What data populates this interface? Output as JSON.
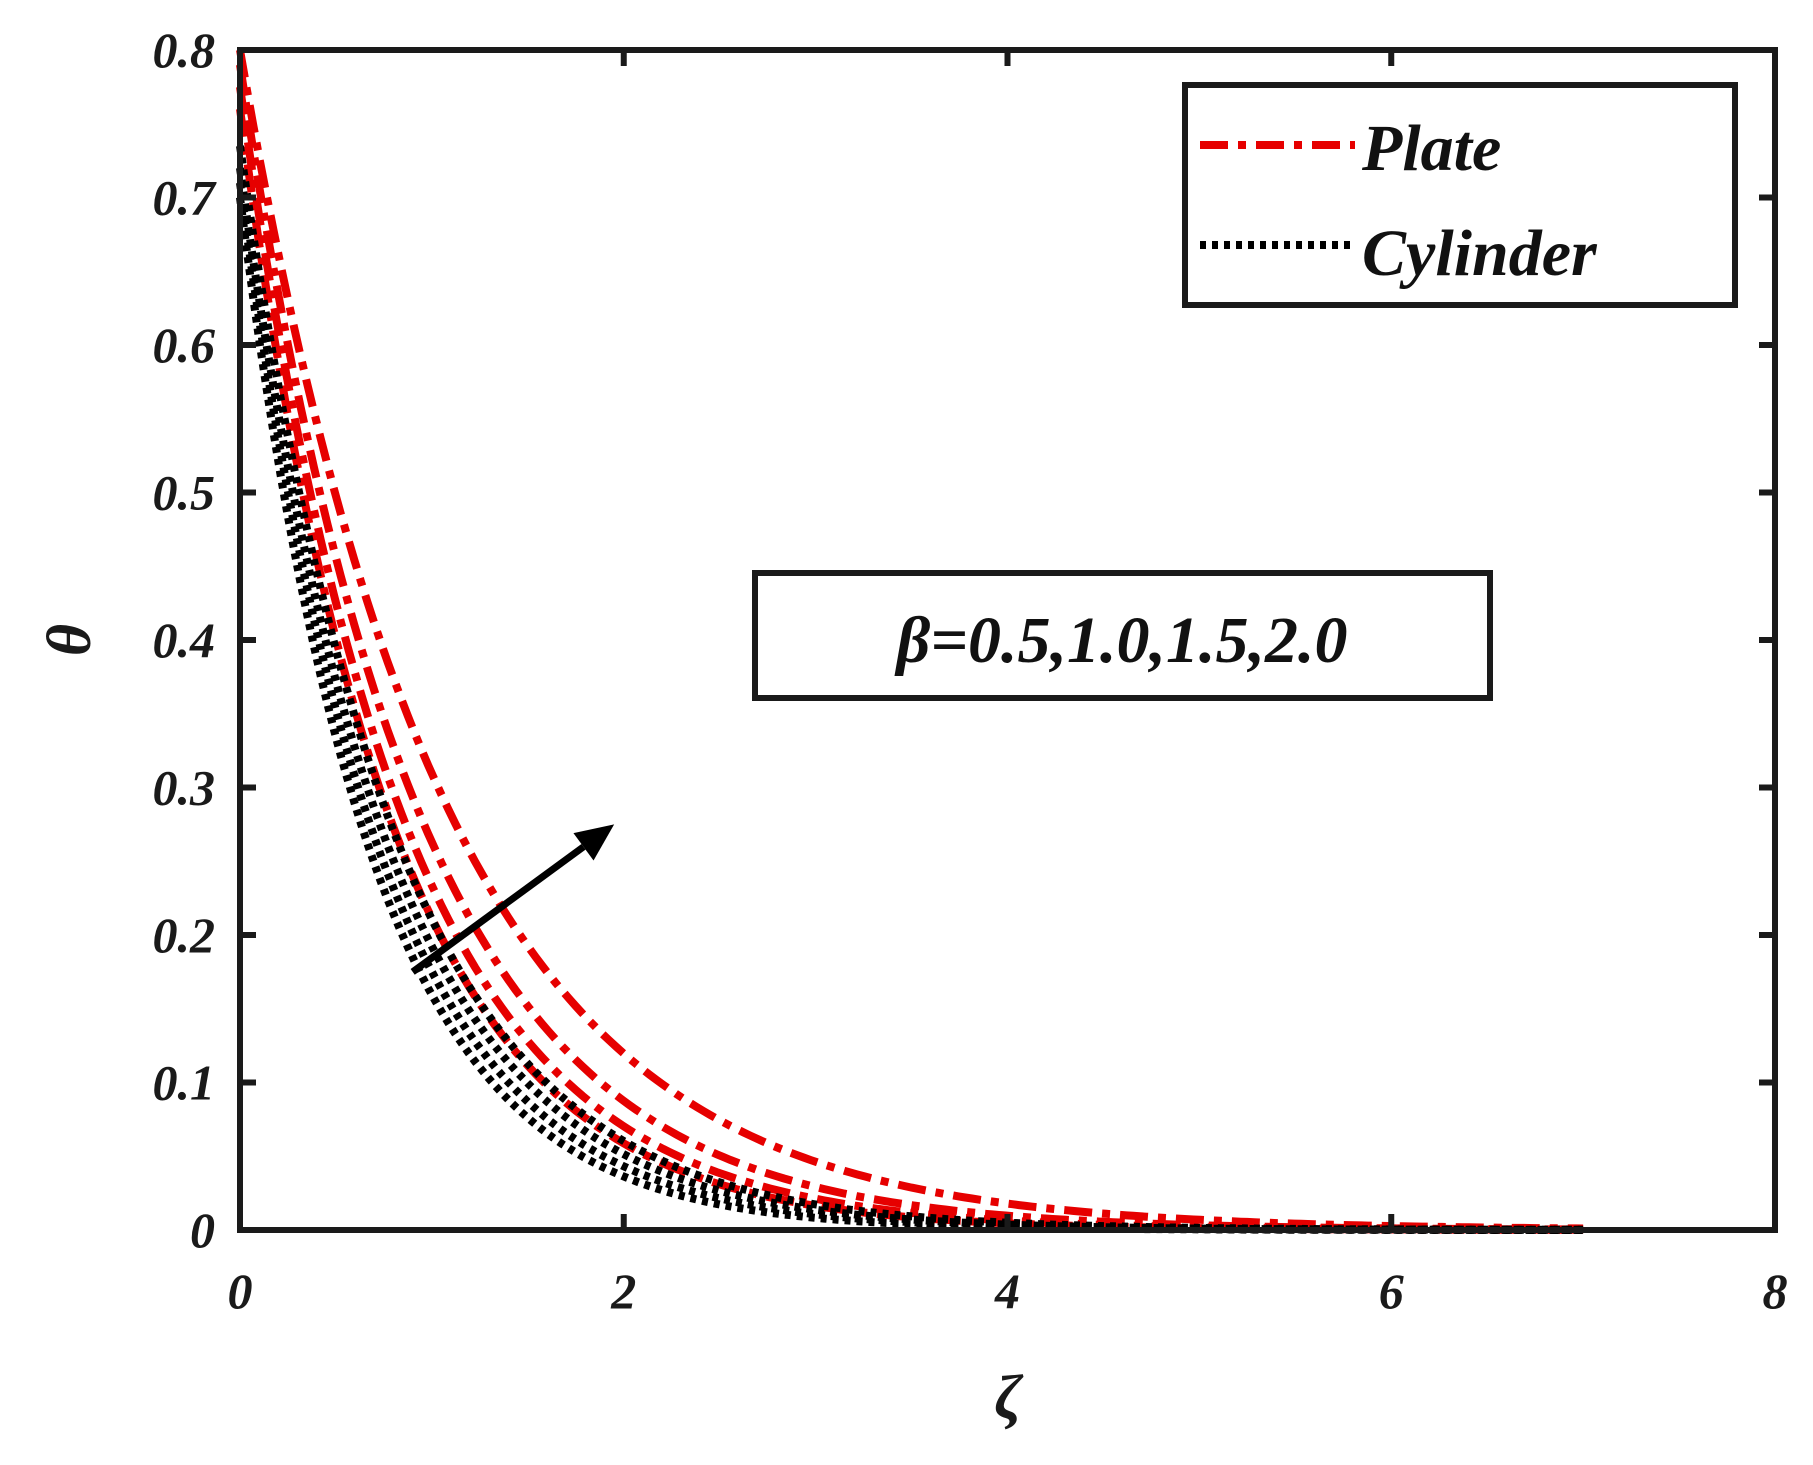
{
  "chart_data": {
    "type": "line",
    "xlabel": "ζ",
    "ylabel": "θ",
    "xlim": [
      0,
      8
    ],
    "ylim": [
      0,
      0.8
    ],
    "xticks": [
      0,
      2,
      4,
      6,
      8
    ],
    "yticks": [
      0,
      0.1,
      0.2,
      0.3,
      0.4,
      0.5,
      0.6,
      0.7,
      0.8
    ],
    "xtick_labels": [
      "0",
      "2",
      "4",
      "6",
      "8"
    ],
    "ytick_labels": [
      "0",
      "0.1",
      "0.2",
      "0.3",
      "0.4",
      "0.5",
      "0.6",
      "0.7",
      "0.8"
    ],
    "grid": false,
    "legend": {
      "position": "top-right",
      "entries": [
        {
          "label": "Plate",
          "color": "#e60000",
          "style": "dashdot"
        },
        {
          "label": "Cylinder",
          "color": "#000000",
          "style": "dotted"
        }
      ]
    },
    "annotation": {
      "text": "β=0.5,1.0,1.5,2.0",
      "arrow_from": [
        0.9,
        0.175
      ],
      "arrow_to": [
        1.95,
        0.275
      ]
    },
    "x_end": 7.0,
    "series": [
      {
        "name": "Plate",
        "beta": 0.5,
        "theta0": 0.76,
        "decay": 1.28,
        "color": "#e60000",
        "style": "dashdot"
      },
      {
        "name": "Plate",
        "beta": 1.0,
        "theta0": 0.775,
        "decay": 1.2,
        "color": "#e60000",
        "style": "dashdot"
      },
      {
        "name": "Plate",
        "beta": 1.5,
        "theta0": 0.79,
        "decay": 1.1,
        "color": "#e60000",
        "style": "dashdot"
      },
      {
        "name": "Plate",
        "beta": 2.0,
        "theta0": 0.8,
        "decay": 0.95,
        "color": "#e60000",
        "style": "dashdot"
      },
      {
        "name": "Cylinder",
        "beta": 0.5,
        "theta0": 0.7,
        "decay": 1.48,
        "color": "#000000",
        "style": "dotted"
      },
      {
        "name": "Cylinder",
        "beta": 1.0,
        "theta0": 0.71,
        "decay": 1.4,
        "color": "#000000",
        "style": "dotted"
      },
      {
        "name": "Cylinder",
        "beta": 1.5,
        "theta0": 0.72,
        "decay": 1.32,
        "color": "#000000",
        "style": "dotted"
      },
      {
        "name": "Cylinder",
        "beta": 2.0,
        "theta0": 0.735,
        "decay": 1.25,
        "color": "#000000",
        "style": "dotted"
      }
    ]
  }
}
